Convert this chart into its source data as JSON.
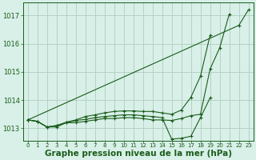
{
  "bg_color": "#d8f0e8",
  "grid_color": "#b0ccc0",
  "line_color": "#1a5c1a",
  "xlabel": "Graphe pression niveau de la mer (hPa)",
  "xlabel_fontsize": 7.5,
  "ylim": [
    1012.55,
    1017.45
  ],
  "xlim": [
    -0.5,
    23.5
  ],
  "yticks": [
    1013,
    1014,
    1015,
    1016,
    1017
  ],
  "xticks": [
    0,
    1,
    2,
    3,
    4,
    5,
    6,
    7,
    8,
    9,
    10,
    11,
    12,
    13,
    14,
    15,
    16,
    17,
    18,
    19,
    20,
    21,
    22,
    23
  ],
  "series": [
    [
      1013.3,
      1013.25,
      1013.05,
      1013.05,
      1013.2,
      1013.2,
      1013.25,
      1013.3,
      1013.35,
      1013.35,
      1013.38,
      1013.38,
      1013.35,
      1013.3,
      1013.3,
      1013.28,
      1013.35,
      1013.45,
      1013.5,
      1015.1,
      1015.85,
      1017.05,
      null,
      null
    ],
    [
      1013.3,
      1013.25,
      1013.05,
      1013.1,
      1013.2,
      1013.28,
      1013.32,
      1013.38,
      1013.42,
      1013.45,
      1013.48,
      1013.48,
      1013.45,
      1013.42,
      1013.38,
      1012.62,
      1012.65,
      1012.72,
      1013.38,
      1014.08,
      null,
      null,
      null,
      null
    ],
    [
      1013.3,
      1013.25,
      1013.05,
      1013.1,
      1013.22,
      1013.3,
      1013.42,
      1013.48,
      1013.55,
      1013.6,
      1013.62,
      1013.62,
      1013.6,
      1013.6,
      1013.55,
      1013.5,
      1013.65,
      1014.1,
      1014.85,
      1016.3,
      null,
      null,
      null,
      null
    ],
    [
      1013.3,
      null,
      null,
      null,
      null,
      null,
      null,
      null,
      null,
      null,
      null,
      null,
      null,
      null,
      null,
      null,
      null,
      null,
      null,
      null,
      null,
      null,
      1016.65,
      1017.2
    ]
  ]
}
